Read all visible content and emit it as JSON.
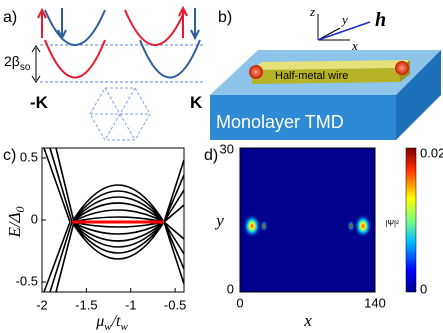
{
  "panels": {
    "a": {
      "label": "a)",
      "splitting": "2β",
      "splitting_sub": "so",
      "valley_left": "-K",
      "valley_right": "K"
    },
    "b": {
      "label": "b)",
      "axis_z": "z",
      "axis_y": "y",
      "axis_x": "x",
      "field": "h",
      "wire": "Half-metal wire",
      "substrate": "Monolayer  TMD"
    },
    "c": {
      "label": "c)",
      "ylabel": "E/Δ",
      "ylabel_sub": "0",
      "xlabel": [
        "μ",
        "w",
        "/t",
        "w"
      ],
      "xlim": [
        -2,
        -0.4
      ],
      "xticks": [
        -2,
        -1.5,
        -1,
        -0.5
      ],
      "ylim": [
        -0.58,
        0.58
      ],
      "yticks": [
        0.5,
        0,
        -0.5
      ]
    },
    "d": {
      "label": "d)",
      "xlabel": "x",
      "ylabel": "y",
      "xlim": [
        0,
        140
      ],
      "xticks": [
        0,
        140
      ],
      "ylim": [
        0,
        30
      ],
      "yticks": [
        0,
        30
      ],
      "colorbar": {
        "lim": [
          0,
          0.02
        ],
        "ticks": [
          0,
          0.02
        ],
        "label": "|Ψ|²"
      }
    }
  }
}
